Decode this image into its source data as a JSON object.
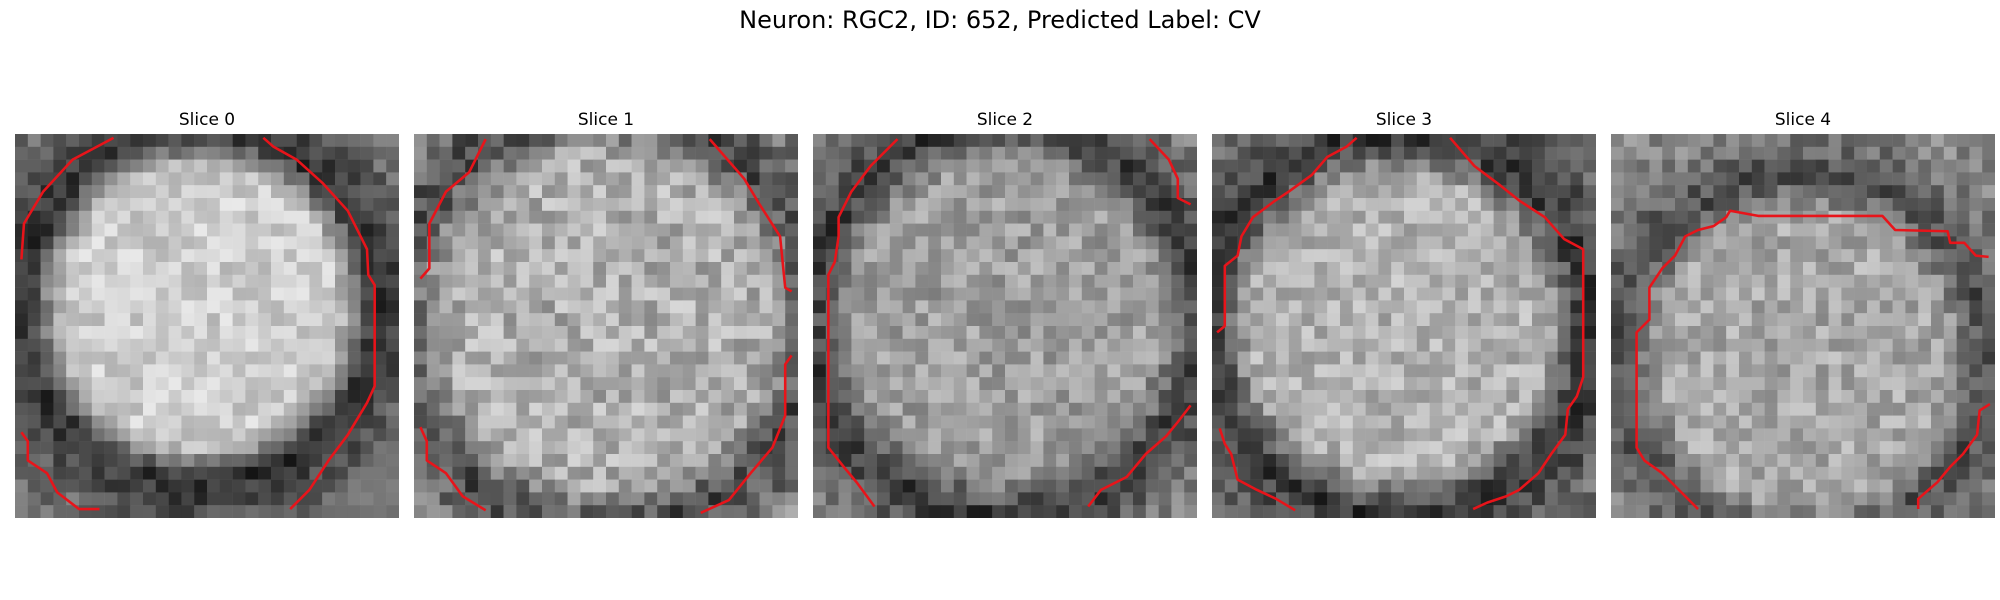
{
  "title": "Neuron: RGC2, ID: 652, Predicted Label: CV",
  "colors": {
    "contour": "#e8141a",
    "background": "#ffffff"
  },
  "slices": [
    {
      "label": "Slice 0"
    },
    {
      "label": "Slice 1"
    },
    {
      "label": "Slice 2"
    },
    {
      "label": "Slice 3"
    },
    {
      "label": "Slice 4"
    }
  ]
}
